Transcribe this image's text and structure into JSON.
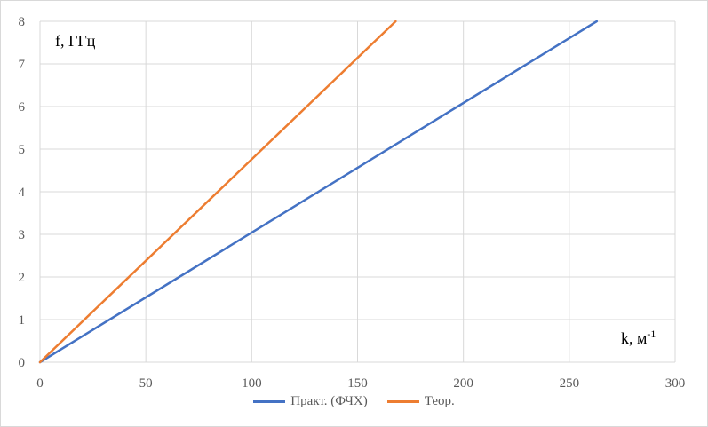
{
  "chart_data": {
    "type": "line",
    "xlabel": "k, м",
    "xlabel_sup": "-1",
    "ylabel": "f, ГГц",
    "xlim": [
      0,
      300
    ],
    "ylim": [
      0,
      8
    ],
    "x_ticks": [
      0,
      50,
      100,
      150,
      200,
      250,
      300
    ],
    "y_ticks": [
      0,
      1,
      2,
      3,
      4,
      5,
      6,
      7,
      8
    ],
    "grid": true,
    "legend_position": "bottom",
    "series": [
      {
        "name": "Практ. (ФЧХ)",
        "color": "#4472c4",
        "x": [
          0,
          263
        ],
        "y": [
          0,
          8
        ]
      },
      {
        "name": "Теор.",
        "color": "#ed7d31",
        "x": [
          0,
          168
        ],
        "y": [
          0,
          8
        ]
      }
    ]
  }
}
